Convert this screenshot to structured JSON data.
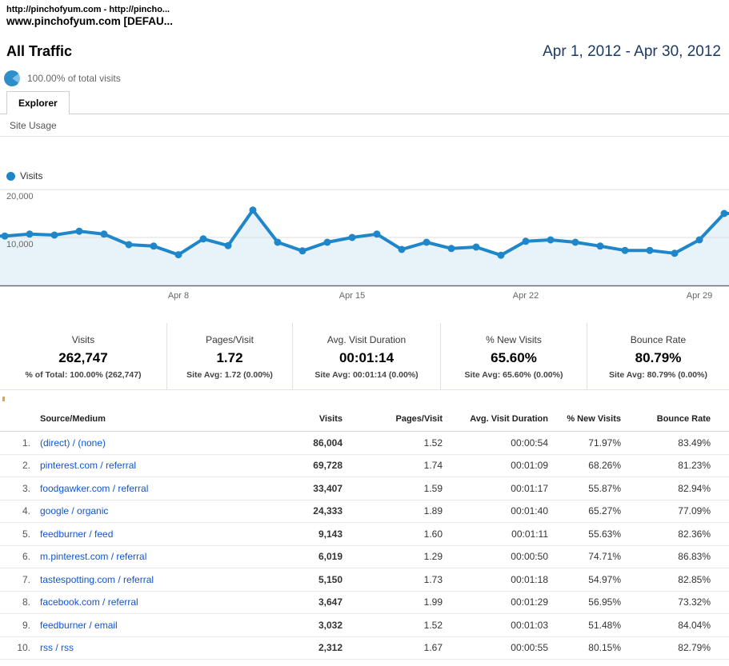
{
  "window": {
    "profile_line1": "http://pinchofyum.com - http://pincho...",
    "profile_line2": "www.pinchofyum.com [DEFAU..."
  },
  "report": {
    "title": "All Traffic",
    "date_range": "Apr 1, 2012 - Apr 30, 2012",
    "segment_note": "100.00% of total visits"
  },
  "tabs": {
    "explorer": "Explorer",
    "site_usage": "Site Usage"
  },
  "colors": {
    "accent_blue": "#1f87c9",
    "link_blue": "#1155cc",
    "date_navy": "#1c3a63"
  },
  "chart_data": {
    "type": "line",
    "title": "Visits over time",
    "series_name": "Visits",
    "x": [
      "Apr 1",
      "Apr 2",
      "Apr 3",
      "Apr 4",
      "Apr 5",
      "Apr 6",
      "Apr 7",
      "Apr 8",
      "Apr 9",
      "Apr 10",
      "Apr 11",
      "Apr 12",
      "Apr 13",
      "Apr 14",
      "Apr 15",
      "Apr 16",
      "Apr 17",
      "Apr 18",
      "Apr 19",
      "Apr 20",
      "Apr 21",
      "Apr 22",
      "Apr 23",
      "Apr 24",
      "Apr 25",
      "Apr 26",
      "Apr 27",
      "Apr 28",
      "Apr 29",
      "Apr 30"
    ],
    "values": [
      10300,
      10700,
      10500,
      11300,
      10700,
      8500,
      8200,
      6400,
      9700,
      8300,
      15700,
      9000,
      7200,
      9000,
      10000,
      10700,
      7500,
      9000,
      7700,
      8000,
      6300,
      9200,
      9500,
      9000,
      8200,
      7300,
      7300,
      6700,
      9500,
      15000
    ],
    "x_tick_labels": [
      "Apr 8",
      "Apr 15",
      "Apr 22",
      "Apr 29"
    ],
    "x_tick_indices": [
      7,
      14,
      21,
      28
    ],
    "y_ticks": [
      20000,
      10000
    ],
    "y_tick_labels": [
      "20,000",
      "10,000"
    ],
    "ylim": [
      0,
      20800
    ],
    "grid": "horizontal",
    "legend_position": "top-left",
    "line_color": "#1f87c9",
    "area_color": "#e8f2f9",
    "axis_color": "#6e6e6e"
  },
  "metrics": [
    {
      "label": "Visits",
      "value": "262,747",
      "sub": "% of Total: 100.00% (262,747)"
    },
    {
      "label": "Pages/Visit",
      "value": "1.72",
      "sub": "Site Avg: 1.72 (0.00%)"
    },
    {
      "label": "Avg. Visit Duration",
      "value": "00:01:14",
      "sub": "Site Avg: 00:01:14 (0.00%)"
    },
    {
      "label": "% New Visits",
      "value": "65.60%",
      "sub": "Site Avg: 65.60% (0.00%)"
    },
    {
      "label": "Bounce Rate",
      "value": "80.79%",
      "sub": "Site Avg: 80.79% (0.00%)"
    }
  ],
  "table": {
    "columns": [
      "Source/Medium",
      "Visits",
      "Pages/Visit",
      "Avg. Visit Duration",
      "% New Visits",
      "Bounce Rate"
    ],
    "rows": [
      {
        "rank": "1.",
        "source": "(direct) / (none)",
        "visits": "86,004",
        "pages": "1.52",
        "duration": "00:00:54",
        "new_visits": "71.97%",
        "bounce": "83.49%"
      },
      {
        "rank": "2.",
        "source": "pinterest.com / referral",
        "visits": "69,728",
        "pages": "1.74",
        "duration": "00:01:09",
        "new_visits": "68.26%",
        "bounce": "81.23%"
      },
      {
        "rank": "3.",
        "source": "foodgawker.com / referral",
        "visits": "33,407",
        "pages": "1.59",
        "duration": "00:01:17",
        "new_visits": "55.87%",
        "bounce": "82.94%"
      },
      {
        "rank": "4.",
        "source": "google / organic",
        "visits": "24,333",
        "pages": "1.89",
        "duration": "00:01:40",
        "new_visits": "65.27%",
        "bounce": "77.09%"
      },
      {
        "rank": "5.",
        "source": "feedburner / feed",
        "visits": "9,143",
        "pages": "1.60",
        "duration": "00:01:11",
        "new_visits": "55.63%",
        "bounce": "82.36%"
      },
      {
        "rank": "6.",
        "source": "m.pinterest.com / referral",
        "visits": "6,019",
        "pages": "1.29",
        "duration": "00:00:50",
        "new_visits": "74.71%",
        "bounce": "86.83%"
      },
      {
        "rank": "7.",
        "source": "tastespotting.com / referral",
        "visits": "5,150",
        "pages": "1.73",
        "duration": "00:01:18",
        "new_visits": "54.97%",
        "bounce": "82.85%"
      },
      {
        "rank": "8.",
        "source": "facebook.com / referral",
        "visits": "3,647",
        "pages": "1.99",
        "duration": "00:01:29",
        "new_visits": "56.95%",
        "bounce": "73.32%"
      },
      {
        "rank": "9.",
        "source": "feedburner / email",
        "visits": "3,032",
        "pages": "1.52",
        "duration": "00:01:03",
        "new_visits": "51.48%",
        "bounce": "84.04%"
      },
      {
        "rank": "10.",
        "source": "rss / rss",
        "visits": "2,312",
        "pages": "1.67",
        "duration": "00:00:55",
        "new_visits": "80.15%",
        "bounce": "82.79%"
      }
    ]
  }
}
